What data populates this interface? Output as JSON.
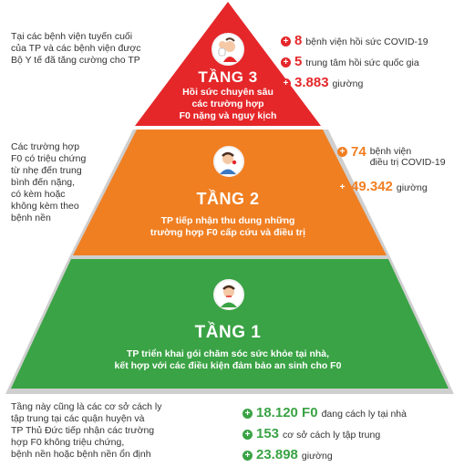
{
  "colors": {
    "tier3": "#e5272a",
    "tier2": "#f07f22",
    "tier1": "#3aa345",
    "shadow": "#c9c9c9",
    "red_text": "#e5272a",
    "orange_text": "#f07f22",
    "green_text": "#3aa345"
  },
  "tier3": {
    "title": "TẦNG 3",
    "desc": "Hồi sức chuyên sâu\ncác trường hợp\nF0 nặng và nguy kịch",
    "icon": "patient-doctor-icon",
    "side_text": "Tại các bệnh viện tuyến cuối\ncủa TP và các bệnh viện được\nBộ Y tế đã tăng cường cho TP",
    "stats": [
      {
        "num": "8",
        "label": "bệnh viện hồi sức COVID-19"
      },
      {
        "num": "5",
        "label": "trung tâm hồi sức quốc gia"
      },
      {
        "num": "3.883",
        "label": "giường"
      }
    ]
  },
  "tier2": {
    "title": "TẦNG 2",
    "desc": "TP tiếp nhận thu dung những\ntrường hợp F0 cấp cứu và điều trị",
    "icon": "sick-patient-icon",
    "side_text": "Các trường hợp\nF0 có triệu chứng\ntừ nhẹ đến trung\nbình đến nặng,\ncó kèm hoặc\nkhông kèm theo\nbệnh nền",
    "stats": [
      {
        "num": "74",
        "label": "bệnh viện\nđiều trị COVID-19"
      },
      {
        "num": "49.342",
        "label": "giường"
      }
    ]
  },
  "tier1": {
    "title": "TẦNG 1",
    "desc": "TP triển khai gói chăm sóc sức khỏe tại nhà,\nkết hợp với các điều kiện đảm bảo an sinh cho F0",
    "icon": "person-neck-icon",
    "side_text": "Tầng này cũng là các cơ sở cách ly\ntập trung tại các quận huyện và\nTP Thủ Đức tiếp nhận các trường\nhợp F0 không triệu chứng,\nbệnh nền hoặc bệnh nền ổn định",
    "stats": [
      {
        "num": "18.120 F0",
        "label": "đang cách ly tại nhà"
      },
      {
        "num": "153",
        "label": "cơ sở cách ly tập trung"
      },
      {
        "num": "23.898",
        "label": "giường"
      }
    ]
  }
}
